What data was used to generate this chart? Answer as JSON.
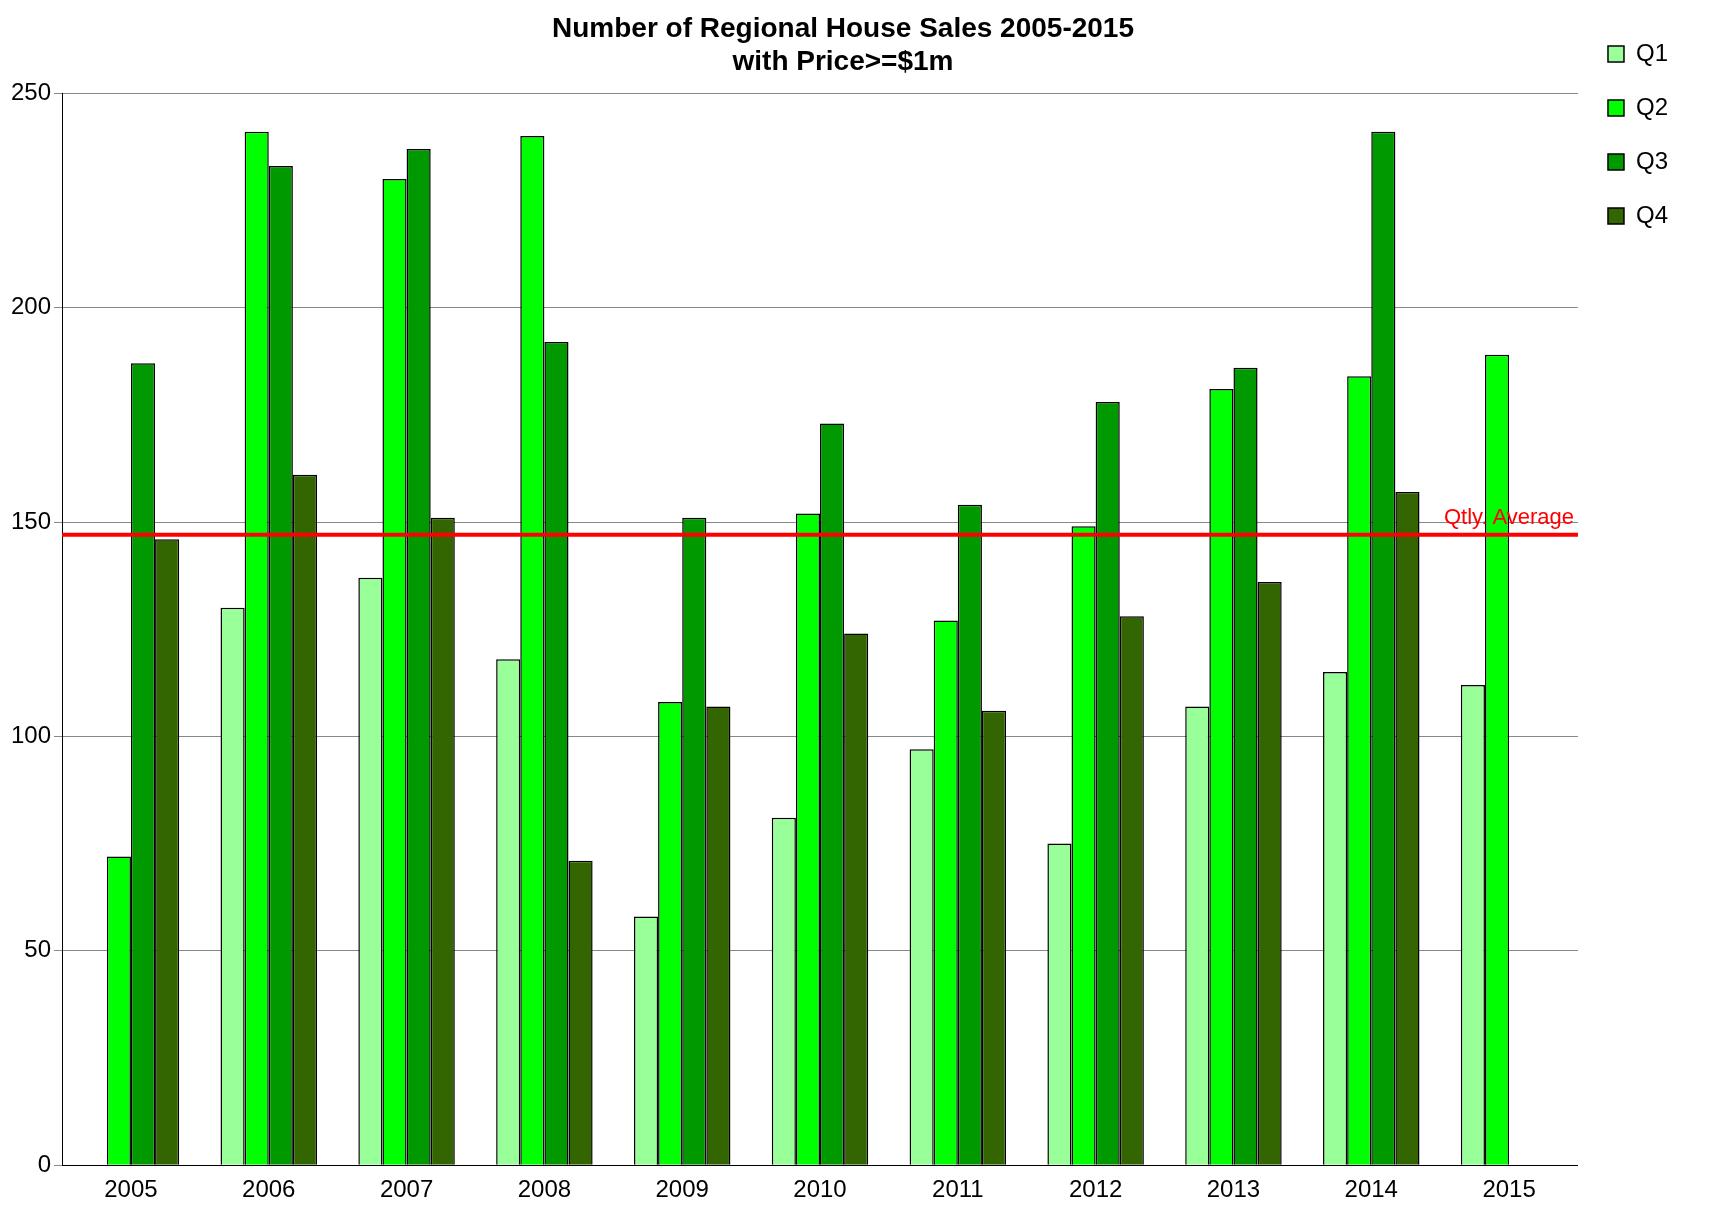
{
  "chart_data": {
    "type": "bar",
    "title": "Number of Regional House Sales 2005-2015\nwith Price>=$1m",
    "categories": [
      "2005",
      "2006",
      "2007",
      "2008",
      "2009",
      "2010",
      "2011",
      "2012",
      "2013",
      "2014",
      "2015"
    ],
    "series": [
      {
        "name": "Q1",
        "color": "#99ff99",
        "values": [
          null,
          130,
          137,
          118,
          58,
          81,
          97,
          75,
          107,
          115,
          112
        ]
      },
      {
        "name": "Q2",
        "color": "#00ff00",
        "values": [
          72,
          241,
          230,
          240,
          108,
          152,
          127,
          149,
          181,
          184,
          189
        ]
      },
      {
        "name": "Q3",
        "color": "#009900",
        "values": [
          187,
          233,
          237,
          192,
          151,
          173,
          154,
          178,
          186,
          241,
          null
        ]
      },
      {
        "name": "Q4",
        "color": "#336600",
        "values": [
          146,
          161,
          151,
          71,
          107,
          124,
          106,
          128,
          136,
          157,
          null
        ]
      }
    ],
    "ylim": [
      0,
      250
    ],
    "yticks": [
      0,
      50,
      100,
      150,
      200,
      250
    ],
    "grid": "y",
    "legend": "top right",
    "ref_lines": [
      {
        "axis": "y",
        "value": 147,
        "label": "Qtly. Average",
        "color": "#ff0000"
      }
    ]
  }
}
